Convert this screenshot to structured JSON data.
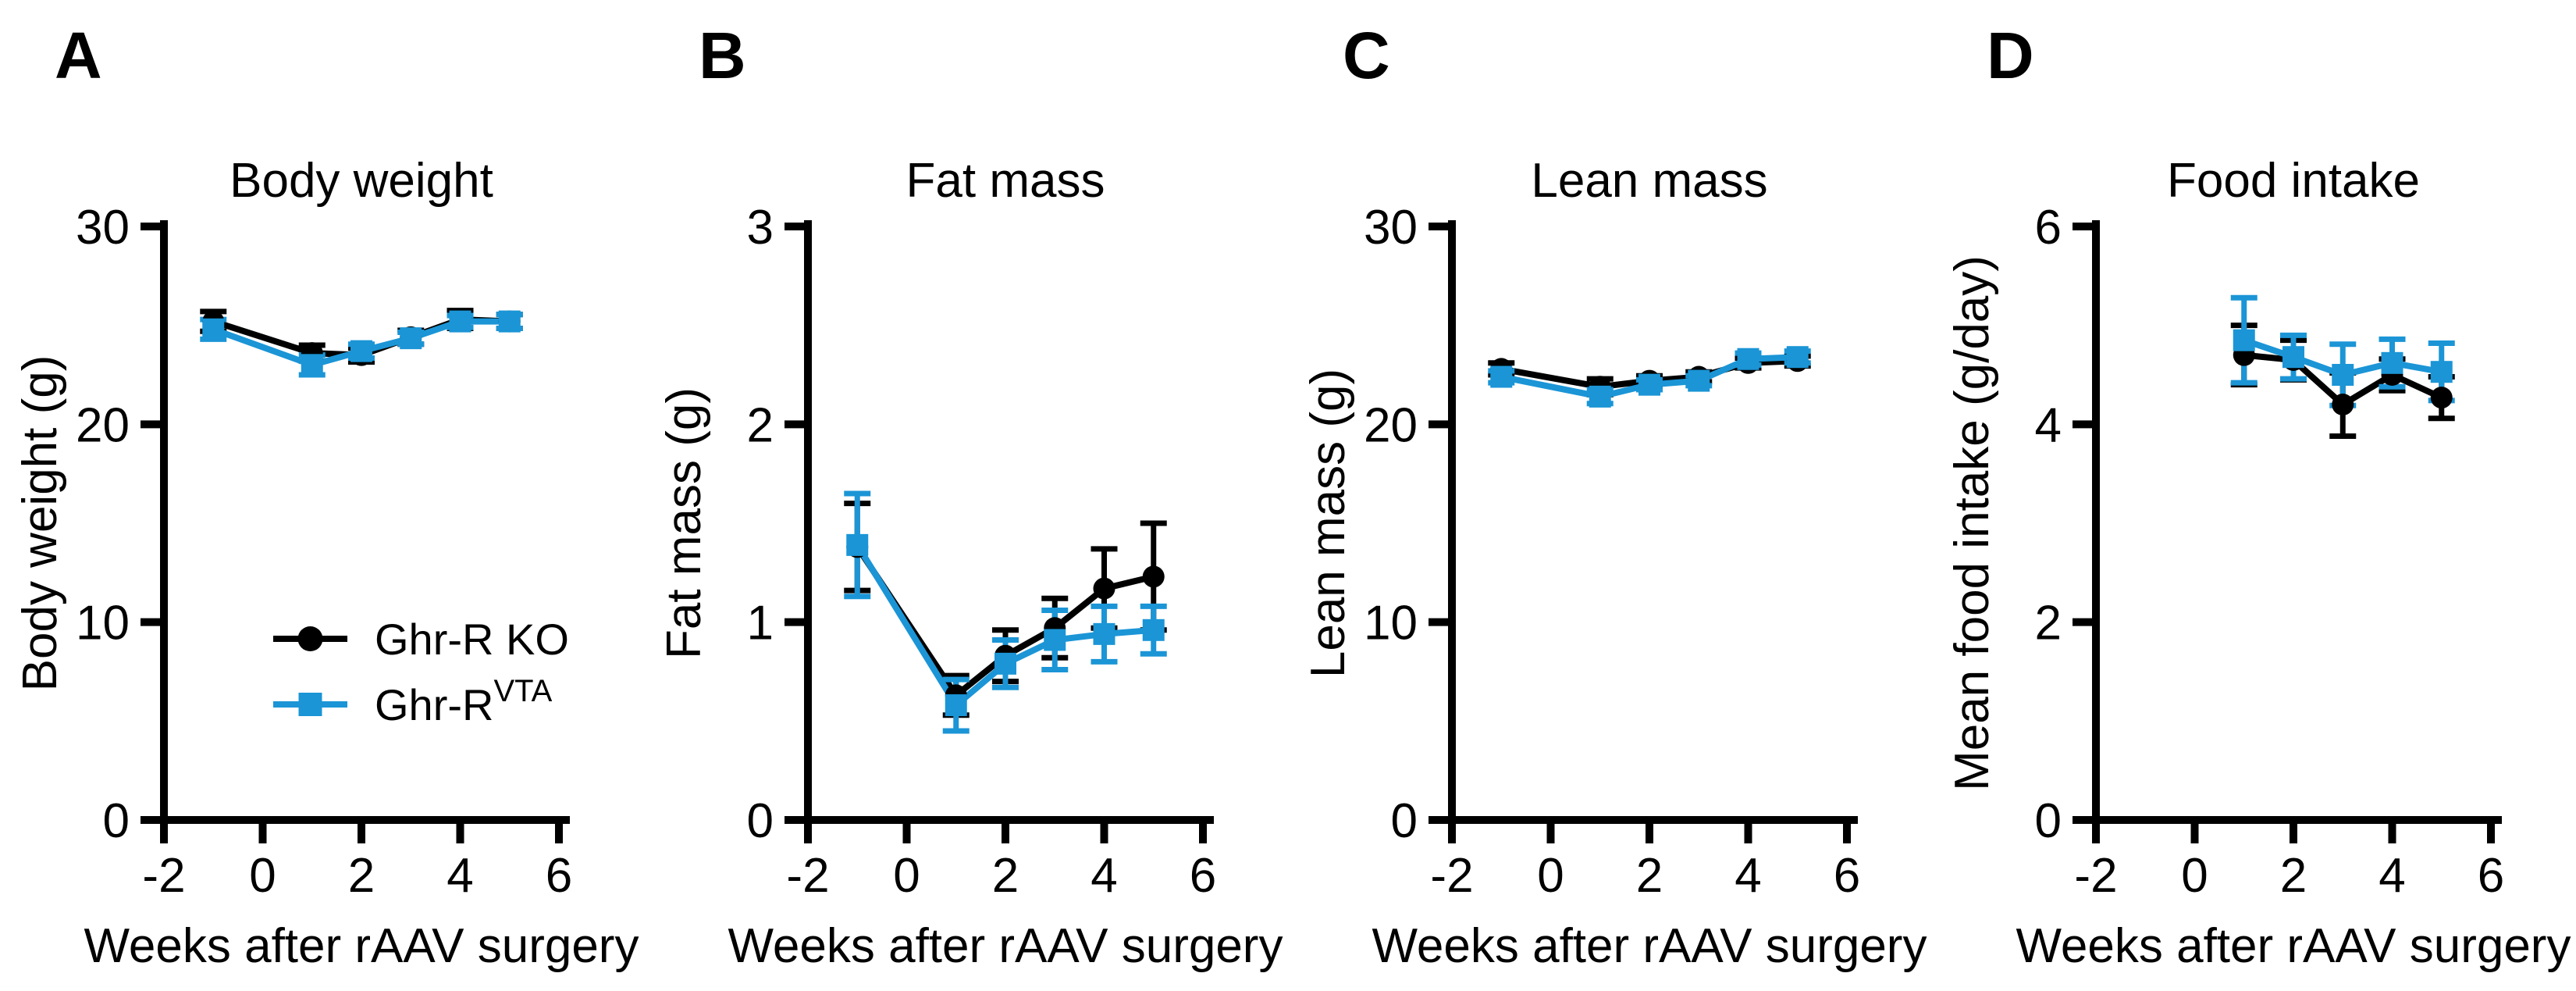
{
  "figure_xlabel": "Weeks after rAAV surgery",
  "accent_blue": "#1B95D6",
  "series_black": "#000000",
  "legend": {
    "entries": [
      {
        "base": "Ghr-R KO",
        "sup": "",
        "marker": "circle",
        "color": "#000000"
      },
      {
        "base": "Ghr-R",
        "sup": "VTA",
        "marker": "square",
        "color": "#1B95D6"
      }
    ]
  },
  "chart_data": [
    {
      "type": "line",
      "panel_label": "A",
      "title": "Body weight",
      "ylabel": "Body weight (g)",
      "xlabel": "Weeks after rAAV surgery",
      "xlim": [
        -2,
        6
      ],
      "ylim": [
        0,
        30
      ],
      "xticks": [
        -2,
        0,
        2,
        4,
        6
      ],
      "xtick_labels": [
        "-2",
        "0",
        "2",
        "4",
        "6"
      ],
      "yticks": [
        0,
        10,
        20,
        30
      ],
      "ytick_labels": [
        "0",
        "10",
        "20",
        "30"
      ],
      "grid": false,
      "legend_position": "inside-lower-left",
      "show_legend": true,
      "x": [
        -1,
        1,
        2,
        3,
        4,
        5
      ],
      "series": [
        {
          "name": "Ghr-R KO",
          "name_base": "Ghr-R KO",
          "name_sup": "",
          "marker": "circle",
          "color": "#000000",
          "values": [
            25.2,
            23.6,
            23.5,
            24.4,
            25.3,
            25.2
          ],
          "errors": [
            0.5,
            0.4,
            0.35,
            0.35,
            0.45,
            0.35
          ]
        },
        {
          "name": "Ghr-RVTA",
          "name_base": "Ghr-R",
          "name_sup": "VTA",
          "marker": "square",
          "color": "#1B95D6",
          "values": [
            24.8,
            23.0,
            23.7,
            24.35,
            25.2,
            25.2
          ],
          "errors": [
            0.5,
            0.5,
            0.35,
            0.3,
            0.3,
            0.35
          ]
        }
      ]
    },
    {
      "type": "line",
      "panel_label": "B",
      "title": "Fat mass",
      "ylabel": "Fat mass (g)",
      "xlabel": "Weeks after rAAV surgery",
      "xlim": [
        -2,
        6
      ],
      "ylim": [
        0,
        3
      ],
      "xticks": [
        -2,
        0,
        2,
        4,
        6
      ],
      "xtick_labels": [
        "-2",
        "0",
        "2",
        "4",
        "6"
      ],
      "yticks": [
        0,
        1,
        2,
        3
      ],
      "ytick_labels": [
        "0",
        "1",
        "2",
        "3"
      ],
      "grid": false,
      "show_legend": false,
      "x": [
        -1,
        1,
        2,
        3,
        4,
        5
      ],
      "series": [
        {
          "name": "Ghr-R KO",
          "name_base": "Ghr-R KO",
          "name_sup": "",
          "marker": "circle",
          "color": "#000000",
          "values": [
            1.38,
            0.63,
            0.83,
            0.97,
            1.17,
            1.23
          ],
          "errors": [
            0.22,
            0.1,
            0.13,
            0.15,
            0.2,
            0.27
          ]
        },
        {
          "name": "Ghr-RVTA",
          "name_base": "Ghr-R",
          "name_sup": "VTA",
          "marker": "square",
          "color": "#1B95D6",
          "values": [
            1.39,
            0.58,
            0.79,
            0.91,
            0.94,
            0.96
          ],
          "errors": [
            0.26,
            0.13,
            0.12,
            0.15,
            0.14,
            0.12
          ]
        }
      ]
    },
    {
      "type": "line",
      "panel_label": "C",
      "title": "Lean mass",
      "ylabel": "Lean mass (g)",
      "xlabel": "Weeks after rAAV surgery",
      "xlim": [
        -2,
        6
      ],
      "ylim": [
        0,
        30
      ],
      "xticks": [
        -2,
        0,
        2,
        4,
        6
      ],
      "xtick_labels": [
        "-2",
        "0",
        "2",
        "4",
        "6"
      ],
      "yticks": [
        0,
        10,
        20,
        30
      ],
      "ytick_labels": [
        "0",
        "10",
        "20",
        "30"
      ],
      "grid": false,
      "show_legend": false,
      "x": [
        -1,
        1,
        2,
        3,
        4,
        5
      ],
      "series": [
        {
          "name": "Ghr-R KO",
          "name_base": "Ghr-R KO",
          "name_sup": "",
          "marker": "circle",
          "color": "#000000",
          "values": [
            22.8,
            21.9,
            22.2,
            22.4,
            23.1,
            23.2
          ],
          "errors": [
            0.3,
            0.4,
            0.25,
            0.25,
            0.25,
            0.25
          ]
        },
        {
          "name": "Ghr-RVTA",
          "name_base": "Ghr-R",
          "name_sup": "VTA",
          "marker": "square",
          "color": "#1B95D6",
          "values": [
            22.4,
            21.4,
            22.0,
            22.2,
            23.3,
            23.4
          ],
          "errors": [
            0.3,
            0.35,
            0.25,
            0.25,
            0.3,
            0.3
          ]
        }
      ]
    },
    {
      "type": "line",
      "panel_label": "D",
      "title": "Food intake",
      "ylabel": "Mean food intake (g/day)",
      "xlabel": "Weeks after rAAV surgery",
      "xlim": [
        -2,
        6
      ],
      "ylim": [
        0,
        6
      ],
      "xticks": [
        -2,
        0,
        2,
        4,
        6
      ],
      "xtick_labels": [
        "-2",
        "0",
        "2",
        "4",
        "6"
      ],
      "yticks": [
        0,
        2,
        4,
        6
      ],
      "ytick_labels": [
        "0",
        "2",
        "4",
        "6"
      ],
      "grid": false,
      "show_legend": false,
      "x": [
        1,
        2,
        3,
        4,
        5
      ],
      "series": [
        {
          "name": "Ghr-R KO",
          "name_base": "Ghr-R KO",
          "name_sup": "",
          "marker": "circle",
          "color": "#000000",
          "values": [
            4.7,
            4.65,
            4.2,
            4.5,
            4.27
          ],
          "errors": [
            0.3,
            0.2,
            0.32,
            0.16,
            0.21
          ]
        },
        {
          "name": "Ghr-RVTA",
          "name_base": "Ghr-R",
          "name_sup": "VTA",
          "marker": "square",
          "color": "#1B95D6",
          "values": [
            4.85,
            4.68,
            4.5,
            4.62,
            4.53
          ],
          "errors": [
            0.43,
            0.22,
            0.31,
            0.24,
            0.29
          ]
        }
      ]
    }
  ]
}
